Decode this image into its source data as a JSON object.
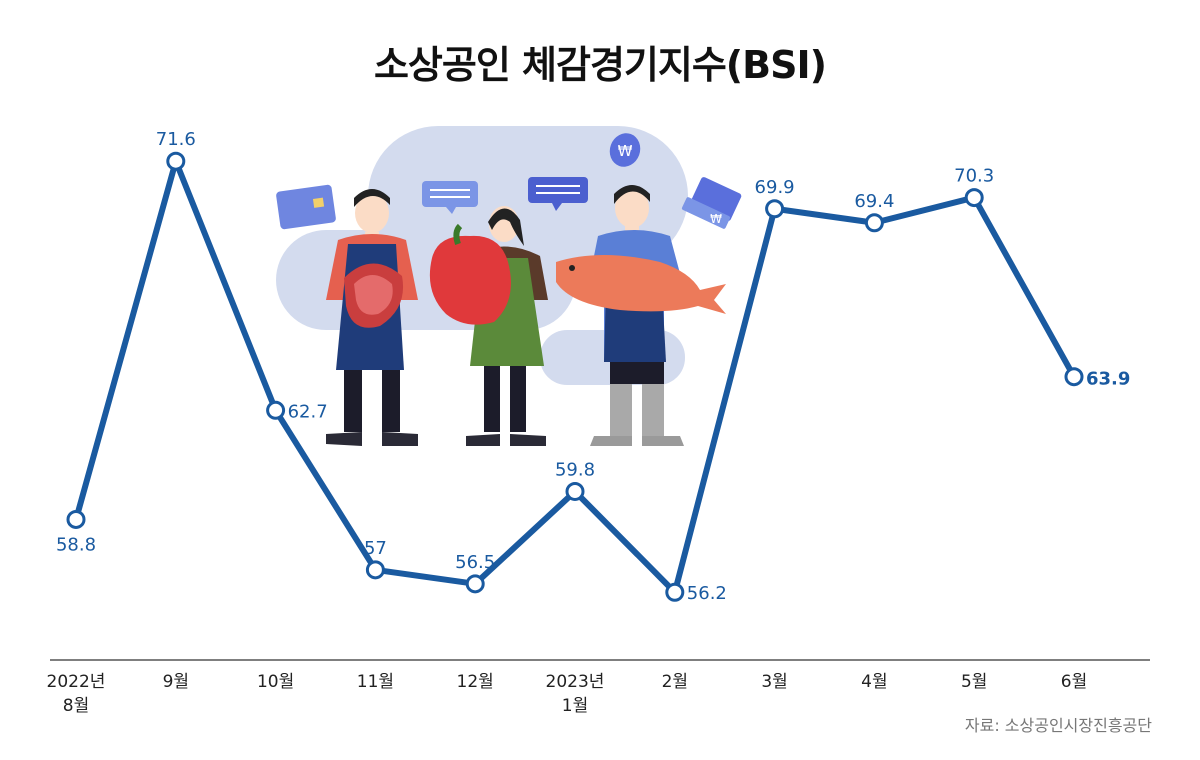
{
  "title": "소상공인 체감경기지수(BSI)",
  "source": "자료: 소상공인시장진흥공단",
  "colors": {
    "line": "#1a5aa0",
    "label": "#1a5aa0",
    "axis": "#555555"
  },
  "chart_data": {
    "type": "line",
    "title": "소상공인 체감경기지수(BSI)",
    "categories": [
      "2022년 8월",
      "9월",
      "10월",
      "11월",
      "12월",
      "2023년 1월",
      "2월",
      "3월",
      "4월",
      "5월",
      "6월"
    ],
    "tick_labels": [
      [
        "2022년",
        "8월"
      ],
      [
        "9월"
      ],
      [
        "10월"
      ],
      [
        "11월"
      ],
      [
        "12월"
      ],
      [
        "2023년",
        "1월"
      ],
      [
        "2월"
      ],
      [
        "3월"
      ],
      [
        "4월"
      ],
      [
        "5월"
      ],
      [
        "6월"
      ]
    ],
    "series": [
      {
        "values": [
          58.8,
          71.6,
          62.7,
          57,
          56.5,
          59.8,
          56.2,
          69.9,
          69.4,
          70.3,
          63.9
        ]
      }
    ],
    "value_labels": [
      "58.8",
      "71.6",
      "62.7",
      "57",
      "56.5",
      "59.8",
      "56.2",
      "69.9",
      "69.4",
      "70.3",
      "63.9"
    ],
    "label_placement": [
      "below",
      "above",
      "right",
      "above",
      "above",
      "above",
      "right",
      "above",
      "above",
      "above",
      "right"
    ],
    "highlight_last": true,
    "ylim": [
      53.6,
      72.0
    ],
    "grid": false,
    "legend": "none"
  }
}
